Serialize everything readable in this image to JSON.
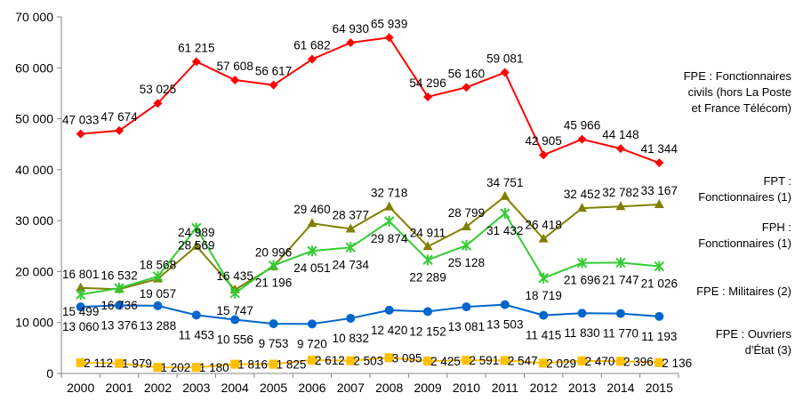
{
  "chart_data": {
    "type": "line",
    "x": [
      "2000",
      "2001",
      "2002",
      "2003",
      "2004",
      "2005",
      "2006",
      "2007",
      "2008",
      "2009",
      "2010",
      "2011",
      "2012",
      "2013",
      "2014",
      "2015"
    ],
    "ylim": [
      0,
      70000
    ],
    "yticks": [
      0,
      10000,
      20000,
      30000,
      40000,
      50000,
      60000,
      70000
    ],
    "ytick_labels": [
      "0",
      "10 000",
      "20 000",
      "30 000",
      "40 000",
      "50 000",
      "60 000",
      "70 000"
    ],
    "grid": false,
    "legend_position": "right",
    "series": [
      {
        "name_lines": [
          "FPE : Fonctionnaires",
          "civils (hors La Poste",
          "et France Télécom)"
        ],
        "color": "#ff0000",
        "marker": "diamond",
        "values": [
          47033,
          47674,
          53025,
          61215,
          57608,
          56617,
          61682,
          64930,
          65939,
          54296,
          56160,
          59081,
          42905,
          45966,
          44148,
          41344
        ],
        "labels": [
          "47 033",
          "47 674",
          "53 025",
          "61 215",
          "57 608",
          "56 617",
          "61 682",
          "64 930",
          "65 939",
          "54 296",
          "56 160",
          "59 081",
          "42 905",
          "45 966",
          "44 148",
          "41 344"
        ]
      },
      {
        "name_lines": [
          "FPT :",
          "Fonctionnaires (1)"
        ],
        "color": "#808000",
        "marker": "triangle",
        "values": [
          16801,
          16532,
          18568,
          24989,
          16435,
          20996,
          29460,
          28377,
          32718,
          24911,
          28799,
          34751,
          26418,
          32452,
          32782,
          33167
        ],
        "labels": [
          "16 801",
          "16 532",
          "18 568",
          "24 989",
          "16 435",
          "20 996",
          "29 460",
          "28 377",
          "32 718",
          "24 911",
          "28 799",
          "34 751",
          "26 418",
          "32 452",
          "32 782",
          "33 167"
        ]
      },
      {
        "name_lines": [
          "FPH :",
          "Fonctionnaires (1)"
        ],
        "color": "#33cc33",
        "marker": "star",
        "values": [
          15499,
          16736,
          19057,
          28569,
          15747,
          21196,
          24051,
          24734,
          29874,
          22289,
          25128,
          31432,
          18719,
          21696,
          21747,
          21026
        ],
        "labels": [
          "15 499",
          "16 736",
          "19 057",
          "28 569",
          "15 747",
          "21 196",
          "24 051",
          "24 734",
          "29 874",
          "22 289",
          "25 128",
          "31 432",
          "18 719",
          "21 696",
          "21 747",
          "21 026"
        ]
      },
      {
        "name_lines": [
          "FPE : Militaires (2)"
        ],
        "color": "#0066cc",
        "marker": "circle",
        "values": [
          13060,
          13376,
          13288,
          11453,
          10556,
          9753,
          9720,
          10832,
          12420,
          12152,
          13081,
          13503,
          11415,
          11830,
          11770,
          11193
        ],
        "labels": [
          "13 060",
          "13 376",
          "13 288",
          "11 453",
          "10 556",
          "9 753",
          "9 720",
          "10 832",
          "12 420",
          "12 152",
          "13 081",
          "13 503",
          "11 415",
          "11 830",
          "11 770",
          "11 193"
        ]
      },
      {
        "name_lines": [
          "FPE : Ouvriers",
          "d'État (3)"
        ],
        "color": "#ffc000",
        "marker": "square",
        "values": [
          2112,
          1979,
          1202,
          1180,
          1816,
          1825,
          2612,
          2503,
          3095,
          2425,
          2591,
          2547,
          2029,
          2470,
          2396,
          2136
        ],
        "labels": [
          "2 112",
          "1 979",
          "1 202",
          "1 180",
          "1 816",
          "1 825",
          "2 612",
          "2 503",
          "3 095",
          "2 425",
          "2 591",
          "2 547",
          "2 029",
          "2 470",
          "2 396",
          "2 136"
        ]
      }
    ]
  }
}
